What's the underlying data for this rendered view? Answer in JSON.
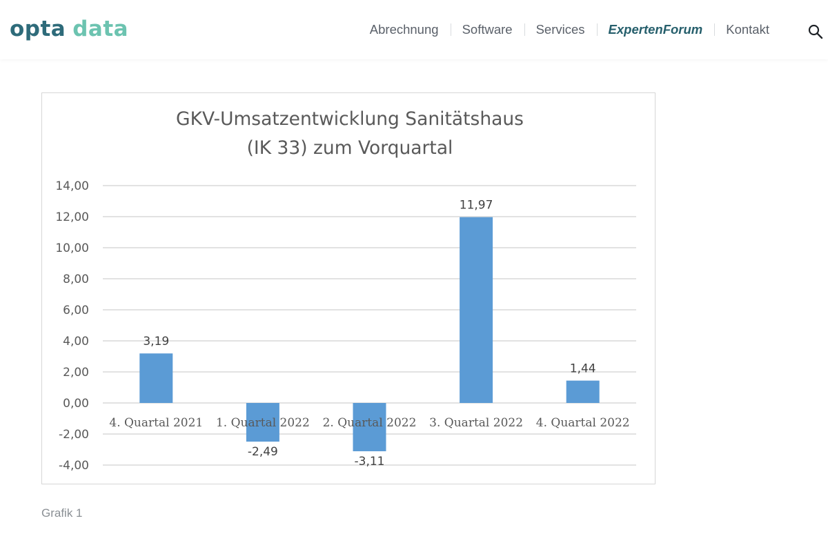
{
  "header": {
    "logo_part1": "opta",
    "logo_part2": "data",
    "nav": [
      {
        "label": "Abrechnung",
        "active": false
      },
      {
        "label": "Software",
        "active": false
      },
      {
        "label": "Services",
        "active": false
      },
      {
        "label": "ExpertenForum",
        "active": true
      },
      {
        "label": "Kontakt",
        "active": false
      }
    ],
    "search_icon": "search-icon"
  },
  "colors": {
    "bar": "#5b9bd5",
    "grid": "#d9d9d9",
    "text": "#595959",
    "logo_dark": "#2e6b7a",
    "logo_light": "#6cc3b0",
    "nav_active": "#265f6c"
  },
  "chart_data": {
    "type": "bar",
    "title_line1": "GKV-Umsatzentwicklung Sanitätshaus",
    "title_line2": "(IK 33) zum Vorquartal",
    "categories": [
      "4. Quartal 2021",
      "1. Quartal 2022",
      "2. Quartal 2022",
      "3. Quartal 2022",
      "4. Quartal 2022"
    ],
    "values": [
      3.19,
      -2.49,
      -3.11,
      11.97,
      1.44
    ],
    "value_labels": [
      "3,19",
      "-2,49",
      "-3,11",
      "11,97",
      "1,44"
    ],
    "ylim": [
      -4,
      14
    ],
    "yticks": [
      14,
      12,
      10,
      8,
      6,
      4,
      2,
      0,
      -2,
      -4
    ],
    "ytick_labels": [
      "14,00",
      "12,00",
      "10,00",
      "8,00",
      "6,00",
      "4,00",
      "2,00",
      "0,00",
      "-2,00",
      "-4,00"
    ],
    "grid": true,
    "legend": "none"
  },
  "caption": "Grafik 1"
}
